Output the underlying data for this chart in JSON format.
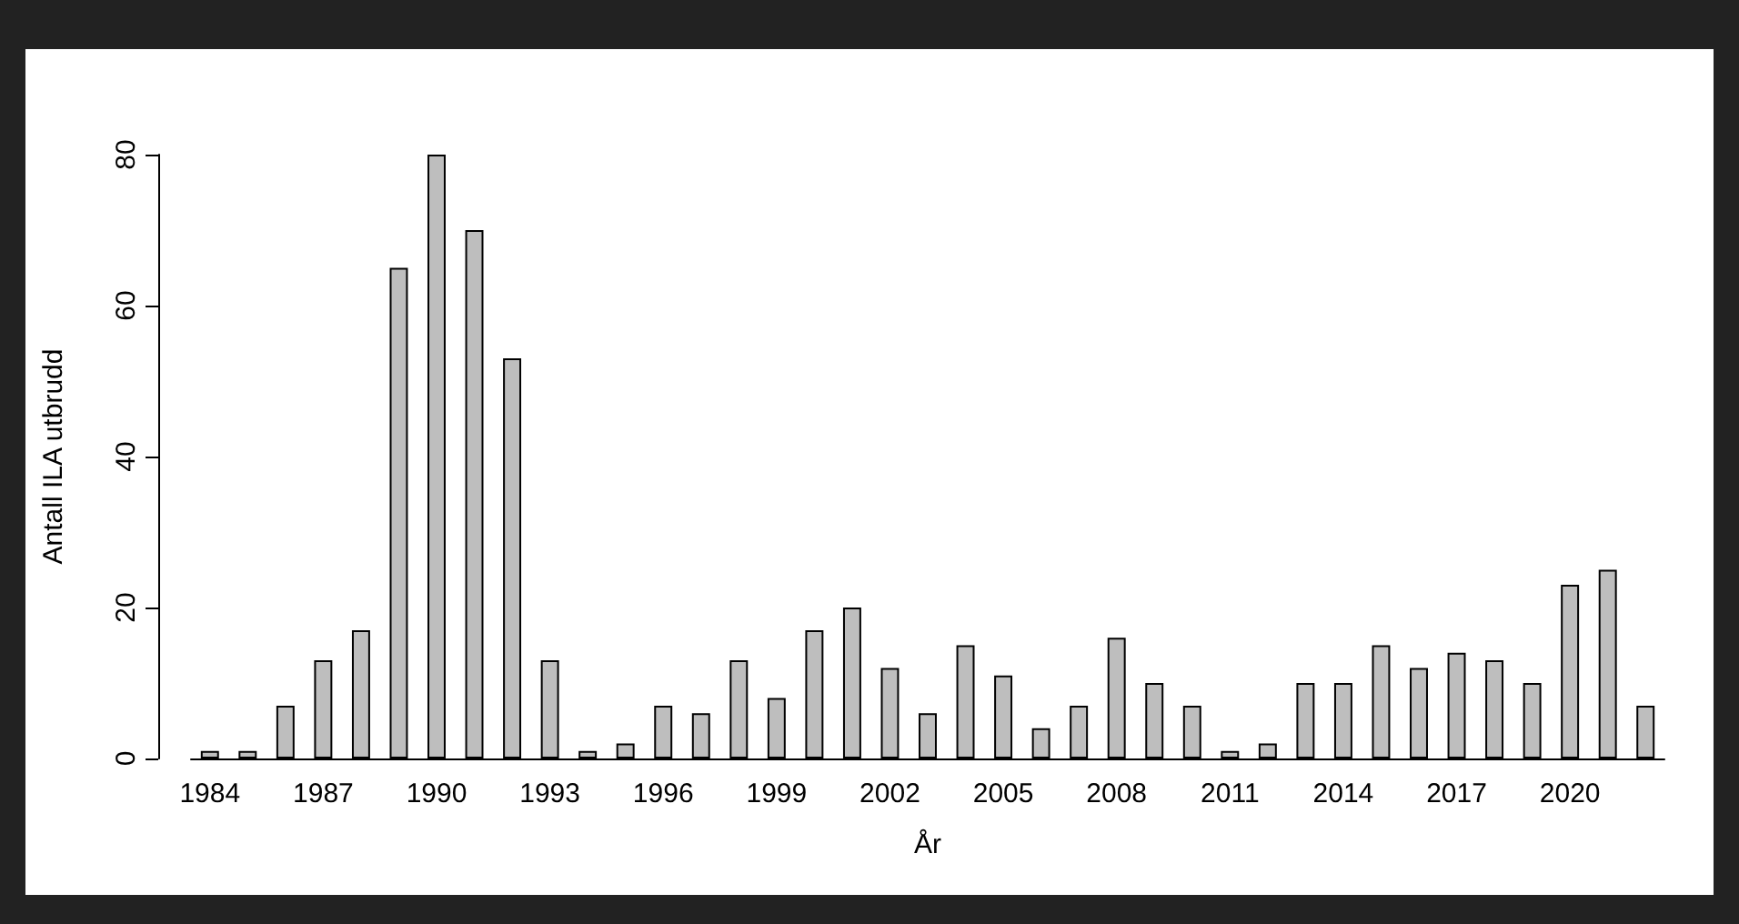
{
  "chart_data": {
    "type": "bar",
    "xlabel": "År",
    "ylabel": "Antall ILA utbrudd",
    "categories": [
      "1984",
      null,
      null,
      "1987",
      null,
      null,
      "1990",
      null,
      null,
      "1993",
      null,
      null,
      "1996",
      null,
      null,
      "1999",
      null,
      null,
      "2002",
      null,
      null,
      "2005",
      null,
      null,
      "2008",
      null,
      null,
      "2011",
      null,
      null,
      "2014",
      null,
      null,
      "2017",
      null,
      null,
      "2020",
      null,
      null
    ],
    "values": [
      1,
      1,
      7,
      13,
      17,
      65,
      80,
      70,
      53,
      13,
      1,
      2,
      7,
      6,
      13,
      8,
      17,
      20,
      12,
      6,
      15,
      11,
      4,
      7,
      16,
      10,
      7,
      1,
      2,
      10,
      10,
      15,
      12,
      14,
      13,
      10,
      23,
      25,
      7
    ],
    "color": "#bebebe",
    "ylim": [
      0,
      80
    ],
    "yticks": [
      0,
      20,
      40,
      60,
      80
    ]
  }
}
